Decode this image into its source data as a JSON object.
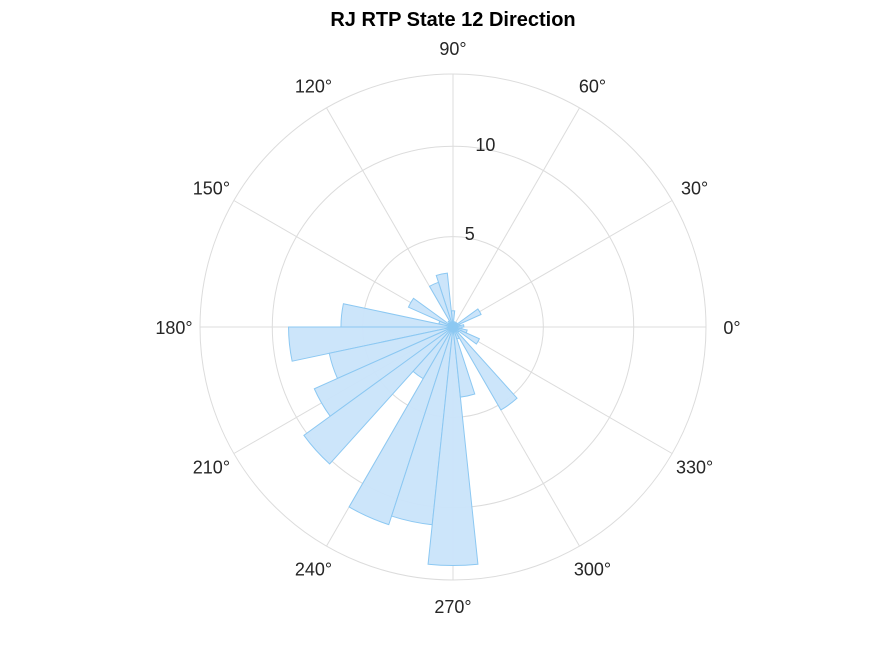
{
  "chart_data": {
    "type": "polar-histogram",
    "title": "RJ  RTP State 12 Direction",
    "angular_ticks": [
      {
        "angle": 0,
        "label": "0°"
      },
      {
        "angle": 30,
        "label": "30°"
      },
      {
        "angle": 60,
        "label": "60°"
      },
      {
        "angle": 90,
        "label": "90°"
      },
      {
        "angle": 120,
        "label": "120°"
      },
      {
        "angle": 150,
        "label": "150°"
      },
      {
        "angle": 180,
        "label": "180°"
      },
      {
        "angle": 210,
        "label": "210°"
      },
      {
        "angle": 240,
        "label": "240°"
      },
      {
        "angle": 270,
        "label": "270°"
      },
      {
        "angle": 300,
        "label": "300°"
      },
      {
        "angle": 330,
        "label": "330°"
      }
    ],
    "radial_ticks": [
      {
        "value": 5,
        "label": "5"
      },
      {
        "value": 10,
        "label": "10"
      }
    ],
    "rlim": [
      0,
      14
    ],
    "grid": true,
    "bin_width_deg": 12,
    "bins": [
      {
        "start": 0,
        "value": 0.6
      },
      {
        "start": 12,
        "value": 0.4
      },
      {
        "start": 24,
        "value": 1.7
      },
      {
        "start": 36,
        "value": 0.3
      },
      {
        "start": 48,
        "value": 0.3
      },
      {
        "start": 60,
        "value": 0.2
      },
      {
        "start": 72,
        "value": 0.3
      },
      {
        "start": 84,
        "value": 0.9
      },
      {
        "start": 96,
        "value": 3.0
      },
      {
        "start": 108,
        "value": 2.6
      },
      {
        "start": 120,
        "value": 0.4
      },
      {
        "start": 132,
        "value": 0.3
      },
      {
        "start": 144,
        "value": 2.7
      },
      {
        "start": 156,
        "value": 0.8
      },
      {
        "start": 168,
        "value": 6.2
      },
      {
        "start": 180,
        "value": 9.1
      },
      {
        "start": 192,
        "value": 7.0
      },
      {
        "start": 204,
        "value": 8.4
      },
      {
        "start": 216,
        "value": 10.2
      },
      {
        "start": 228,
        "value": 3.3
      },
      {
        "start": 240,
        "value": 11.5
      },
      {
        "start": 252,
        "value": 11.0
      },
      {
        "start": 264,
        "value": 13.2
      },
      {
        "start": 276,
        "value": 3.9
      },
      {
        "start": 288,
        "value": 0.7
      },
      {
        "start": 300,
        "value": 5.3
      },
      {
        "start": 312,
        "value": 0.4
      },
      {
        "start": 324,
        "value": 1.6
      },
      {
        "start": 336,
        "value": 0.8
      },
      {
        "start": 348,
        "value": 0.5
      }
    ],
    "colors": {
      "bar_fill": "#c9e4fa",
      "bar_stroke": "#8cc8f2",
      "grid": "#dcdcdc",
      "tick_text": "#262626",
      "title_text": "#000000"
    }
  }
}
